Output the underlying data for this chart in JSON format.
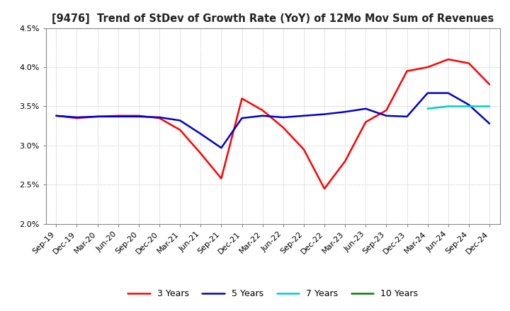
{
  "title": "[9476]  Trend of StDev of Growth Rate (YoY) of 12Mo Mov Sum of Revenues",
  "title_fontsize": 10.5,
  "ylim": [
    0.02,
    0.045
  ],
  "yticks": [
    0.02,
    0.025,
    0.03,
    0.035,
    0.04,
    0.045
  ],
  "background_color": "#ffffff",
  "grid_color": "#b0b0b0",
  "legend_labels": [
    "3 Years",
    "5 Years",
    "7 Years",
    "10 Years"
  ],
  "legend_colors": [
    "#ff0000",
    "#0000cc",
    "#00cccc",
    "#008000"
  ],
  "x_labels": [
    "Sep-19",
    "Dec-19",
    "Mar-20",
    "Jun-20",
    "Sep-20",
    "Dec-20",
    "Mar-21",
    "Jun-21",
    "Sep-21",
    "Dec-21",
    "Mar-22",
    "Jun-22",
    "Sep-22",
    "Dec-22",
    "Mar-23",
    "Jun-23",
    "Sep-23",
    "Dec-23",
    "Mar-24",
    "Jun-24",
    "Sep-24",
    "Dec-24"
  ],
  "series_3y": [
    0.0338,
    0.0335,
    0.0337,
    0.0338,
    0.0338,
    0.0335,
    0.032,
    0.029,
    0.0258,
    0.036,
    0.0345,
    0.0323,
    0.0295,
    0.0245,
    0.028,
    0.033,
    0.0345,
    0.0395,
    0.04,
    0.041,
    0.0405,
    0.0378
  ],
  "series_5y": [
    0.0338,
    0.0336,
    0.0337,
    0.0337,
    0.0337,
    0.0336,
    0.0332,
    0.0315,
    0.0297,
    0.0335,
    0.0338,
    0.0336,
    0.0338,
    0.034,
    0.0343,
    0.0347,
    0.0338,
    0.0337,
    0.0367,
    0.0367,
    0.0352,
    0.0328
  ],
  "series_7y": [
    null,
    null,
    null,
    null,
    null,
    null,
    null,
    null,
    null,
    null,
    null,
    null,
    null,
    null,
    null,
    null,
    null,
    null,
    0.0347,
    0.035,
    0.035,
    0.035
  ],
  "series_10y": [
    null,
    null,
    null,
    null,
    null,
    null,
    null,
    null,
    null,
    null,
    null,
    null,
    null,
    null,
    null,
    null,
    null,
    null,
    null,
    null,
    null,
    null
  ]
}
